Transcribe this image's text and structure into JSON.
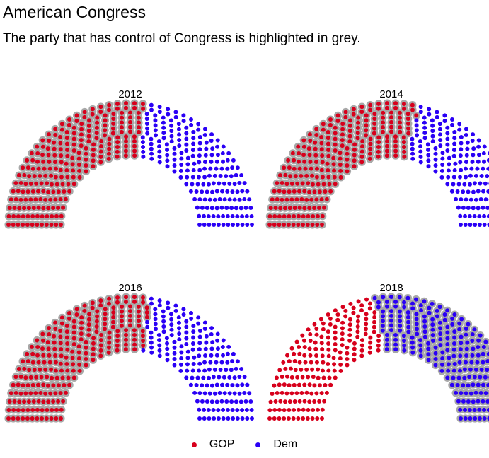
{
  "title": "American Congress",
  "subtitle": "The party that has control of Congress is highlighted in grey.",
  "colors": {
    "GOP": "#d7001c",
    "Dem": "#2a00f5",
    "highlight": "#a8a8a8"
  },
  "legend": [
    {
      "key": "GOP",
      "label": "GOP"
    },
    {
      "key": "Dem",
      "label": "Dem"
    }
  ],
  "chart_data": [
    {
      "type": "parliament",
      "title": "2012",
      "series": [
        {
          "name": "GOP",
          "seats": 234
        },
        {
          "name": "Dem",
          "seats": 201
        }
      ],
      "control": "GOP"
    },
    {
      "type": "parliament",
      "title": "2014",
      "series": [
        {
          "name": "GOP",
          "seats": 247
        },
        {
          "name": "Dem",
          "seats": 188
        }
      ],
      "control": "GOP"
    },
    {
      "type": "parliament",
      "title": "2016",
      "series": [
        {
          "name": "GOP",
          "seats": 241
        },
        {
          "name": "Dem",
          "seats": 194
        }
      ],
      "control": "GOP"
    },
    {
      "type": "parliament",
      "title": "2018",
      "series": [
        {
          "name": "GOP",
          "seats": 199
        },
        {
          "name": "Dem",
          "seats": 235
        }
      ],
      "control": "Dem"
    }
  ]
}
